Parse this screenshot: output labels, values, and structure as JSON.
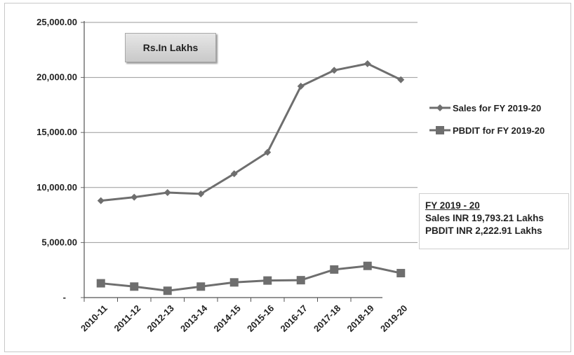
{
  "chart_data": {
    "type": "line",
    "categories": [
      "2010-11",
      "2011-12",
      "2012-13",
      "2013-14",
      "2014-15",
      "2015-16",
      "2016-17",
      "2017-18",
      "2018-19",
      "2019-20"
    ],
    "series": [
      {
        "name": "Sales for FY 2019-20",
        "marker": "diamond",
        "color": "#6e6e6e",
        "values": [
          8800,
          9120,
          9540,
          9420,
          11250,
          13200,
          19200,
          20650,
          21250,
          19793.21
        ]
      },
      {
        "name": "PBDIT for FY 2019-20",
        "marker": "square",
        "color": "#6e6e6e",
        "values": [
          1300,
          1000,
          620,
          1000,
          1380,
          1550,
          1580,
          2550,
          2880,
          2222.91
        ]
      }
    ],
    "y_ticks": [
      "25,000.00",
      "20,000.00",
      "15,000.00",
      "10,000.00",
      "5,000.00",
      "-"
    ],
    "ylim": [
      0,
      25000
    ],
    "grid": "horizontal",
    "legend_position": "right",
    "unit_label": "Rs.In  Lakhs",
    "info_box": {
      "heading": "FY 2019 - 20",
      "line1": "Sales INR 19,793.21 Lakhs",
      "line2": "PBDIT INR 2,222.91 Lakhs"
    }
  }
}
